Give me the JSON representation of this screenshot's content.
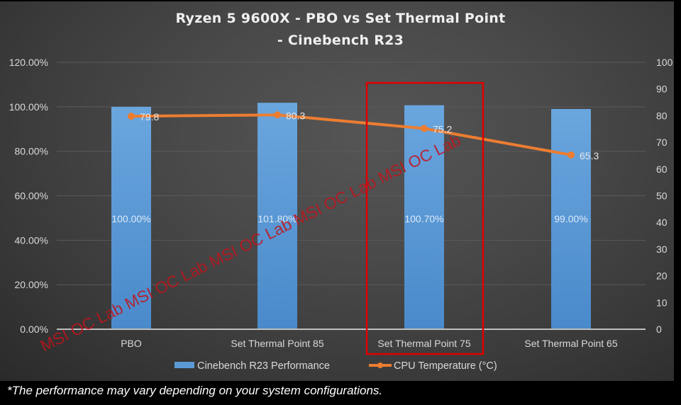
{
  "title_line1": "Ryzen 5 9600X - PBO vs Set Thermal Point",
  "title_line2": "- Cinebench R23",
  "footnote": "*The performance may vary depending on your system configurations.",
  "watermark": "MSI OC Lab MSI OC Lab MSI OC Lab MSI OC Lab MSI OC Lab",
  "highlight": {
    "category": "Set Thermal Point 75",
    "color": "#e00000"
  },
  "colors": {
    "bar": "#5b9bd5",
    "line": "#ed7d31",
    "grid": "#5a5a5a",
    "axis_text": "#d9d9d9",
    "watermark": "#c0141c"
  },
  "chart_data": {
    "type": "bar+line",
    "title": "Ryzen 5 9600X - PBO vs Set Thermal Point - Cinebench R23",
    "categories": [
      "PBO",
      "Set Thermal Point 85",
      "Set Thermal Point 75",
      "Set Thermal Point 65"
    ],
    "series": [
      {
        "name": "Cinebench R23 Performance",
        "type": "bar",
        "axis": "left",
        "values": [
          100.0,
          101.8,
          100.7,
          99.0
        ],
        "labels": [
          "100.00%",
          "101.80%",
          "100.70%",
          "99.00%"
        ]
      },
      {
        "name": "CPU Temperature (°C)",
        "type": "line",
        "axis": "right",
        "values": [
          79.8,
          80.3,
          75.2,
          65.3
        ],
        "labels": [
          "79.8",
          "80.3",
          "75.2",
          "65.3"
        ]
      }
    ],
    "y_left": {
      "min": 0,
      "max": 120,
      "step": 20,
      "ticks": [
        "0.00%",
        "20.00%",
        "40.00%",
        "60.00%",
        "80.00%",
        "100.00%",
        "120.00%"
      ]
    },
    "y_right": {
      "min": 0,
      "max": 100,
      "step": 10,
      "ticks": [
        "0",
        "10",
        "20",
        "30",
        "40",
        "50",
        "60",
        "70",
        "80",
        "90",
        "100"
      ]
    },
    "xlabel": "",
    "ylabel": "",
    "grid": true,
    "legend_position": "bottom",
    "legend": [
      "Cinebench R23 Performance",
      "CPU Temperature (°C)"
    ]
  }
}
